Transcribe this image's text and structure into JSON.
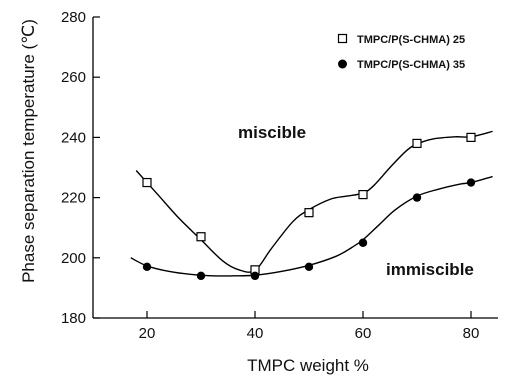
{
  "chart_data": {
    "type": "scatter",
    "xlabel": "TMPC weight %",
    "ylabel": "Phase separation temperature (℃)",
    "xlim": [
      10,
      85
    ],
    "ylim": [
      180,
      280
    ],
    "xticks": [
      20,
      40,
      60,
      80
    ],
    "yticks": [
      180,
      200,
      220,
      240,
      260,
      280
    ],
    "grid": false,
    "legend_position": "top-right",
    "series": [
      {
        "name": "TMPC/P(S-CHMA) 25",
        "marker": "open-square",
        "color": "#000000",
        "x": [
          20,
          30,
          40,
          50,
          60,
          70,
          80
        ],
        "y": [
          225,
          207,
          196,
          215,
          221,
          238,
          240
        ],
        "curve_x": [
          18,
          22,
          26,
          30,
          34,
          37,
          40,
          43,
          47,
          50,
          54,
          57,
          60,
          62,
          65,
          68,
          70,
          73,
          77,
          80,
          84
        ],
        "curve_y": [
          229,
          221,
          213,
          206,
          199,
          196,
          195.8,
          203,
          212,
          216,
          219.5,
          220.5,
          221.5,
          224,
          230,
          235.5,
          237.8,
          239.5,
          240.2,
          240.2,
          242
        ]
      },
      {
        "name": "TMPC/P(S-CHMA) 35",
        "marker": "filled-circle",
        "color": "#000000",
        "x": [
          20,
          30,
          40,
          50,
          60,
          70,
          80
        ],
        "y": [
          197,
          194,
          194,
          197,
          205,
          220,
          225
        ],
        "curve_x": [
          17,
          20,
          24,
          28,
          32,
          36,
          40,
          45,
          50,
          55,
          58,
          60,
          63,
          66,
          70,
          74,
          78,
          80,
          84
        ],
        "curve_y": [
          200,
          197.3,
          195.5,
          194.5,
          194,
          194,
          194.2,
          195.5,
          197.5,
          200.5,
          203.5,
          206,
          211,
          216,
          220.5,
          222.8,
          224.5,
          225,
          227
        ]
      }
    ],
    "annotations": [
      "miscible",
      "immiscible"
    ]
  }
}
